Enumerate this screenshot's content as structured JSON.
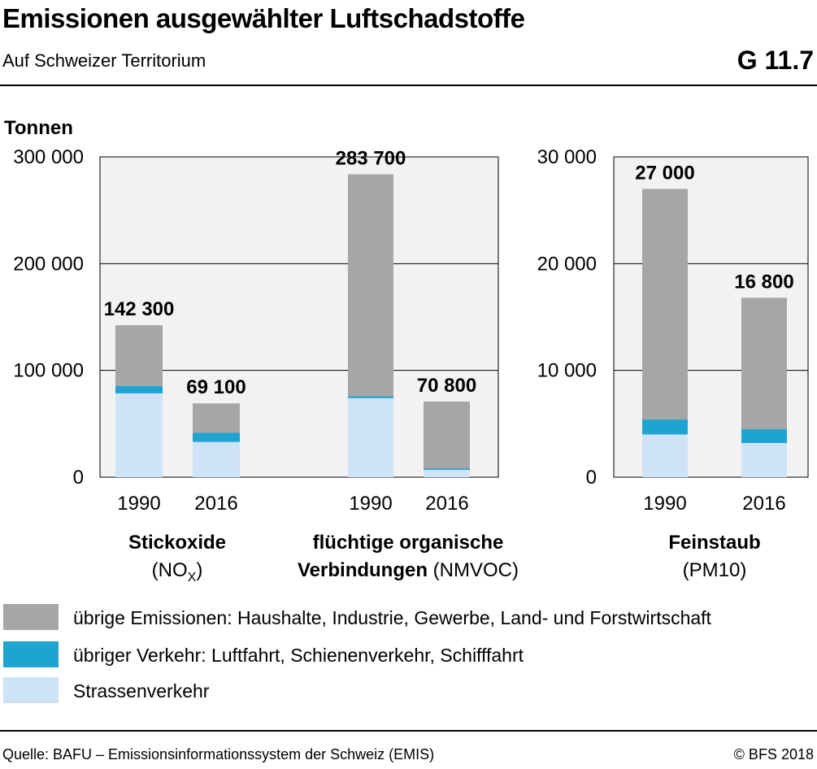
{
  "header": {
    "title": "Emissionen ausgewählter Luftschadstoffe",
    "subtitle": "Auf Schweizer Territorium",
    "code": "G 11.7"
  },
  "footer": {
    "source": "Quelle: BAFU – Emissionsinformationssystem der Schweiz (EMIS)",
    "copyright": "© BFS 2018"
  },
  "colors": {
    "other": "#a6a6a6",
    "transport": "#1fa3d1",
    "road": "#cfe3f7",
    "plot_bg": "#f2f2f2",
    "grid": "#000000"
  },
  "chart_data": [
    {
      "type": "bar",
      "stacked": true,
      "ylabel": "Tonnen",
      "ylim": [
        0,
        300000
      ],
      "yticks": [
        0,
        100000,
        200000,
        300000
      ],
      "ytick_labels": [
        "0",
        "100 000",
        "200 000",
        "300 000"
      ],
      "grid": true,
      "groups": [
        {
          "name_bold": "Stickoxide",
          "name_sub_prefix": "(NO",
          "name_sub_subscript": "X",
          "name_sub_suffix": ")",
          "categories": [
            "1990",
            "2016"
          ],
          "totals_labels": [
            "142 300",
            "69 100"
          ],
          "series": [
            {
              "name": "Strassenverkehr",
              "values": [
                78500,
                33000
              ]
            },
            {
              "name": "übriger Verkehr: Luftfahrt, Schienenverkehr, Schifffahrt",
              "values": [
                7000,
                8500
              ]
            },
            {
              "name": "übrige Emissionen: Haushalte, Industrie, Gewerbe, Land- und Forstwirtschaft",
              "values": [
                56800,
                27600
              ]
            }
          ]
        },
        {
          "name_bold_line1": "flüchtige organische",
          "name_bold_line2": "Verbindungen",
          "name_norm_line2": "(NMVOC)",
          "categories": [
            "1990",
            "2016"
          ],
          "totals_labels": [
            "283 700",
            "70 800"
          ],
          "series": [
            {
              "name": "Strassenverkehr",
              "values": [
                74000,
                6800
              ]
            },
            {
              "name": "übriger Verkehr: Luftfahrt, Schienenverkehr, Schifffahrt",
              "values": [
                1800,
                1200
              ]
            },
            {
              "name": "übrige Emissionen: Haushalte, Industrie, Gewerbe, Land- und Forstwirtschaft",
              "values": [
                207900,
                62800
              ]
            }
          ]
        }
      ]
    },
    {
      "type": "bar",
      "stacked": true,
      "ylim": [
        0,
        30000
      ],
      "yticks": [
        0,
        10000,
        20000,
        30000
      ],
      "ytick_labels": [
        "0",
        "10 000",
        "20 000",
        "30 000"
      ],
      "grid": true,
      "groups": [
        {
          "name_bold": "Feinstaub",
          "name_sub": "(PM10)",
          "categories": [
            "1990",
            "2016"
          ],
          "totals_labels": [
            "27 000",
            "16 800"
          ],
          "series": [
            {
              "name": "Strassenverkehr",
              "values": [
                4000,
                3200
              ]
            },
            {
              "name": "übriger Verkehr: Luftfahrt, Schienenverkehr, Schifffahrt",
              "values": [
                1400,
                1300
              ]
            },
            {
              "name": "übrige Emissionen: Haushalte, Industrie, Gewerbe, Land- und Forstwirtschaft",
              "values": [
                21600,
                12300
              ]
            }
          ]
        }
      ]
    }
  ],
  "legend": [
    {
      "label": "übrige Emissionen: Haushalte, Industrie, Gewerbe, Land- und Forstwirtschaft",
      "color": "#a6a6a6"
    },
    {
      "label": "übriger Verkehr: Luftfahrt, Schienenverkehr, Schifffahrt",
      "color": "#1fa3d1"
    },
    {
      "label": "Strassenverkehr",
      "color": "#cfe3f7"
    }
  ]
}
